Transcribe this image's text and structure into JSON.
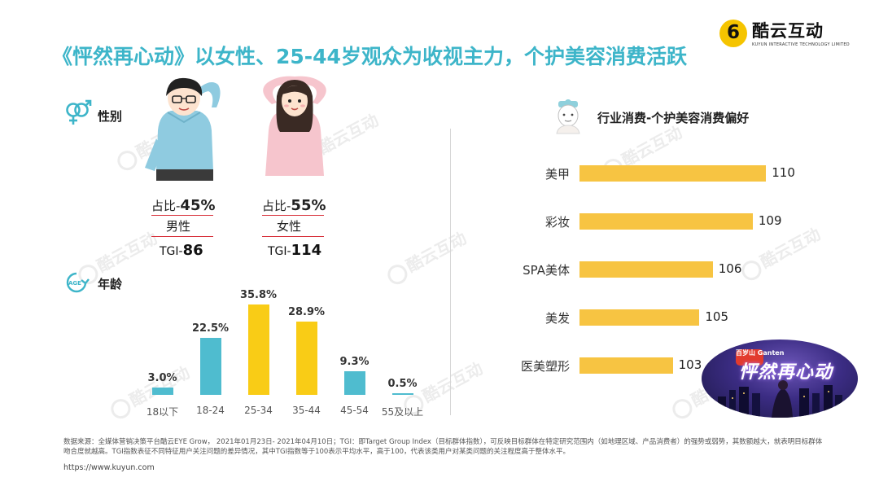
{
  "title": "《怦然再心动》以女性、25-44岁观众为收视主力，个护美容消费活跃",
  "logo": {
    "name": "酷云互动",
    "sub": "KUYUN INTERACTIVE TECHNOLOGY LIMITED",
    "mark": "6"
  },
  "watermark": "酷云互动",
  "gender_section": {
    "label": "性别",
    "icon": "gender-icon"
  },
  "male": {
    "share_prefix": "占比-",
    "share_value": "45%",
    "label": "男性",
    "tgi_prefix": "TGI-",
    "tgi_value": "86",
    "color": "#8fcbe0"
  },
  "female": {
    "share_prefix": "占比-",
    "share_value": "55%",
    "label": "女性",
    "tgi_prefix": "TGI-",
    "tgi_value": "114",
    "color": "#f6c5cd"
  },
  "age_section": {
    "label": "年龄",
    "icon": "age-icon",
    "badge": "AGE"
  },
  "pref_section": {
    "label": "行业消费-个护美容消费偏好",
    "icon": "face-mask-icon"
  },
  "poster": {
    "badge": "百岁山\nGanten",
    "title": "怦然再心动"
  },
  "colors": {
    "teal": "#4fbccf",
    "yellow": "#f9cc16",
    "bar_yellow": "#f7c442",
    "title": "#3db5c9"
  },
  "chart_data": [
    {
      "type": "bar",
      "title": "年龄",
      "categories": [
        "18以下",
        "18-24",
        "25-34",
        "35-44",
        "45-54",
        "55及以上"
      ],
      "values": [
        3.0,
        22.5,
        35.8,
        28.9,
        9.3,
        0.5
      ],
      "value_labels": [
        "3.0%",
        "22.5%",
        "35.8%",
        "28.9%",
        "9.3%",
        "0.5%"
      ],
      "bar_colors": [
        "#4fbccf",
        "#4fbccf",
        "#f9cc16",
        "#f9cc16",
        "#4fbccf",
        "#4fbccf"
      ],
      "ylim": [
        0,
        40
      ],
      "grid": false
    },
    {
      "type": "bar",
      "orientation": "horizontal",
      "title": "行业消费-个护美容消费偏好",
      "categories": [
        "美甲",
        "彩妆",
        "SPA美体",
        "美发",
        "医美塑形"
      ],
      "values": [
        110,
        109,
        106,
        105,
        103
      ],
      "bar_color": "#f7c442",
      "xlim": [
        96,
        112
      ],
      "grid": false
    }
  ],
  "footnote": "数据来源：全媒体营销决策平台酷云EYE Grow， 2021年01月23日- 2021年04月10日；TGI：即Target Group Index（目标群体指数），可反映目标群体在特定研究范围内（如地理区域、产品消费者）的强势或弱势，其数额越大，就表明目标群体吻合度就越高。TGI指数表征不同特征用户关注问题的差异情况，其中TGI指数等于100表示平均水平，高于100，代表该类用户对某类问题的关注程度高于整体水平。",
  "url": "https://www.kuyun.com"
}
